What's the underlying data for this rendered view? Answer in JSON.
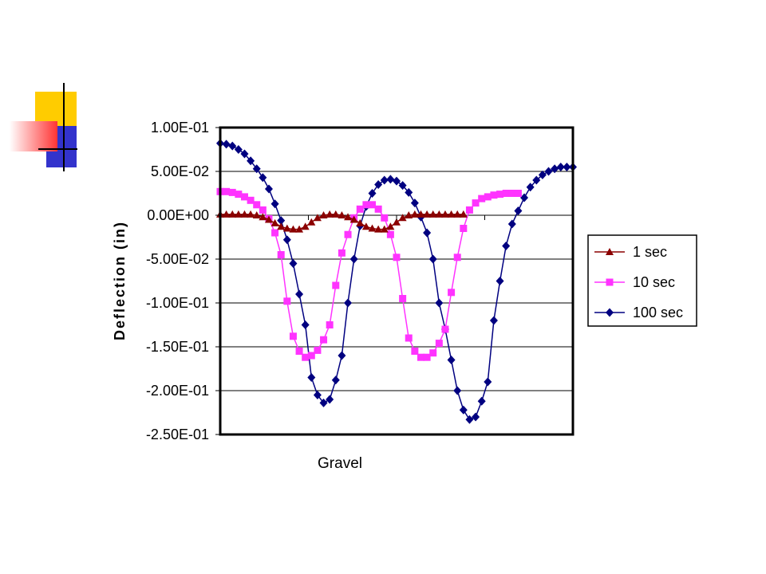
{
  "chart_data": {
    "type": "line",
    "title": "",
    "xlabel": "Gravel",
    "ylabel": "Deflection (in)",
    "ylim": [
      -0.25,
      0.1
    ],
    "y_ticks": [
      "1.00E-01",
      "5.00E-02",
      "0.00E+00",
      "-5.00E-02",
      "-1.00E-01",
      "-1.50E-01",
      "-2.00E-01",
      "-2.50E-01"
    ],
    "y_tick_values": [
      0.1,
      0.05,
      0.0,
      -0.05,
      -0.1,
      -0.15,
      -0.2,
      -0.25
    ],
    "x_major_ticks": 4,
    "grid": "horizontal",
    "legend_position": "right",
    "series": [
      {
        "name": "1 sec",
        "color": "#8b0000",
        "marker": "triangle",
        "points": [
          [
            0,
            0.001
          ],
          [
            0.2,
            0.001
          ],
          [
            0.4,
            0.001
          ],
          [
            0.6,
            0.001
          ],
          [
            0.8,
            0.001
          ],
          [
            1.0,
            0.001
          ],
          [
            1.2,
            0.0
          ],
          [
            1.4,
            -0.002
          ],
          [
            1.6,
            -0.005
          ],
          [
            1.8,
            -0.009
          ],
          [
            2.0,
            -0.013
          ],
          [
            2.2,
            -0.015
          ],
          [
            2.4,
            -0.016
          ],
          [
            2.6,
            -0.016
          ],
          [
            2.8,
            -0.013
          ],
          [
            3.0,
            -0.008
          ],
          [
            3.2,
            -0.003
          ],
          [
            3.4,
            0.0
          ],
          [
            3.6,
            0.001
          ],
          [
            3.8,
            0.001
          ],
          [
            4.0,
            0.0
          ],
          [
            4.2,
            -0.002
          ],
          [
            4.4,
            -0.005
          ],
          [
            4.6,
            -0.009
          ],
          [
            4.8,
            -0.013
          ],
          [
            5.0,
            -0.015
          ],
          [
            5.2,
            -0.016
          ],
          [
            5.4,
            -0.016
          ],
          [
            5.6,
            -0.013
          ],
          [
            5.8,
            -0.008
          ],
          [
            6.0,
            -0.003
          ],
          [
            6.2,
            0.0
          ],
          [
            6.4,
            0.001
          ],
          [
            6.6,
            0.001
          ],
          [
            6.8,
            0.001
          ],
          [
            7.0,
            0.001
          ],
          [
            7.2,
            0.001
          ],
          [
            7.4,
            0.001
          ],
          [
            7.6,
            0.001
          ],
          [
            7.8,
            0.001
          ],
          [
            8.0,
            0.001
          ]
        ]
      },
      {
        "name": "10 sec",
        "color": "#ff33ff",
        "marker": "square",
        "points": [
          [
            0,
            0.027
          ],
          [
            0.2,
            0.027
          ],
          [
            0.4,
            0.026
          ],
          [
            0.6,
            0.024
          ],
          [
            0.8,
            0.021
          ],
          [
            1.0,
            0.017
          ],
          [
            1.2,
            0.012
          ],
          [
            1.4,
            0.006
          ],
          [
            1.6,
            -0.004
          ],
          [
            1.8,
            -0.02
          ],
          [
            2.0,
            -0.045
          ],
          [
            2.2,
            -0.098
          ],
          [
            2.4,
            -0.138
          ],
          [
            2.6,
            -0.155
          ],
          [
            2.8,
            -0.162
          ],
          [
            3.0,
            -0.16
          ],
          [
            3.2,
            -0.154
          ],
          [
            3.4,
            -0.142
          ],
          [
            3.6,
            -0.125
          ],
          [
            3.8,
            -0.08
          ],
          [
            4.0,
            -0.043
          ],
          [
            4.2,
            -0.022
          ],
          [
            4.4,
            -0.003
          ],
          [
            4.6,
            0.007
          ],
          [
            4.8,
            0.012
          ],
          [
            5.0,
            0.012
          ],
          [
            5.2,
            0.007
          ],
          [
            5.4,
            -0.003
          ],
          [
            5.6,
            -0.022
          ],
          [
            5.8,
            -0.048
          ],
          [
            6.0,
            -0.095
          ],
          [
            6.2,
            -0.14
          ],
          [
            6.4,
            -0.155
          ],
          [
            6.6,
            -0.162
          ],
          [
            6.8,
            -0.162
          ],
          [
            7.0,
            -0.157
          ],
          [
            7.2,
            -0.146
          ],
          [
            7.4,
            -0.13
          ],
          [
            7.6,
            -0.088
          ],
          [
            7.8,
            -0.048
          ],
          [
            8.0,
            -0.015
          ],
          [
            8.2,
            0.006
          ],
          [
            8.4,
            0.014
          ],
          [
            8.6,
            0.019
          ],
          [
            8.8,
            0.021
          ],
          [
            9.0,
            0.023
          ],
          [
            9.2,
            0.024
          ],
          [
            9.4,
            0.025
          ],
          [
            9.6,
            0.025
          ],
          [
            9.8,
            0.025
          ]
        ]
      },
      {
        "name": "100 sec",
        "color": "#000080",
        "marker": "diamond",
        "points": [
          [
            0,
            0.082
          ],
          [
            0.2,
            0.081
          ],
          [
            0.4,
            0.079
          ],
          [
            0.6,
            0.075
          ],
          [
            0.8,
            0.07
          ],
          [
            1.0,
            0.062
          ],
          [
            1.2,
            0.053
          ],
          [
            1.4,
            0.043
          ],
          [
            1.6,
            0.03
          ],
          [
            1.8,
            0.013
          ],
          [
            2.0,
            -0.006
          ],
          [
            2.2,
            -0.028
          ],
          [
            2.4,
            -0.055
          ],
          [
            2.6,
            -0.09
          ],
          [
            2.8,
            -0.125
          ],
          [
            3.0,
            -0.185
          ],
          [
            3.2,
            -0.205
          ],
          [
            3.4,
            -0.214
          ],
          [
            3.6,
            -0.21
          ],
          [
            3.8,
            -0.188
          ],
          [
            4.0,
            -0.16
          ],
          [
            4.2,
            -0.1
          ],
          [
            4.4,
            -0.05
          ],
          [
            4.6,
            -0.012
          ],
          [
            4.8,
            0.01
          ],
          [
            5.0,
            0.025
          ],
          [
            5.2,
            0.035
          ],
          [
            5.4,
            0.04
          ],
          [
            5.6,
            0.041
          ],
          [
            5.8,
            0.039
          ],
          [
            6.0,
            0.034
          ],
          [
            6.2,
            0.026
          ],
          [
            6.4,
            0.014
          ],
          [
            6.6,
            -0.002
          ],
          [
            6.8,
            -0.02
          ],
          [
            7.0,
            -0.05
          ],
          [
            7.2,
            -0.1
          ],
          [
            7.4,
            -0.13
          ],
          [
            7.6,
            -0.165
          ],
          [
            7.8,
            -0.2
          ],
          [
            8.0,
            -0.222
          ],
          [
            8.2,
            -0.233
          ],
          [
            8.4,
            -0.23
          ],
          [
            8.6,
            -0.212
          ],
          [
            8.8,
            -0.19
          ],
          [
            9.0,
            -0.12
          ],
          [
            9.2,
            -0.075
          ],
          [
            9.4,
            -0.035
          ],
          [
            9.6,
            -0.01
          ],
          [
            9.8,
            0.005
          ],
          [
            10.0,
            0.02
          ],
          [
            10.2,
            0.032
          ],
          [
            10.4,
            0.04
          ],
          [
            10.6,
            0.046
          ],
          [
            10.8,
            0.05
          ],
          [
            11.0,
            0.053
          ],
          [
            11.2,
            0.055
          ],
          [
            11.4,
            0.055
          ],
          [
            11.6,
            0.055
          ]
        ]
      }
    ]
  }
}
